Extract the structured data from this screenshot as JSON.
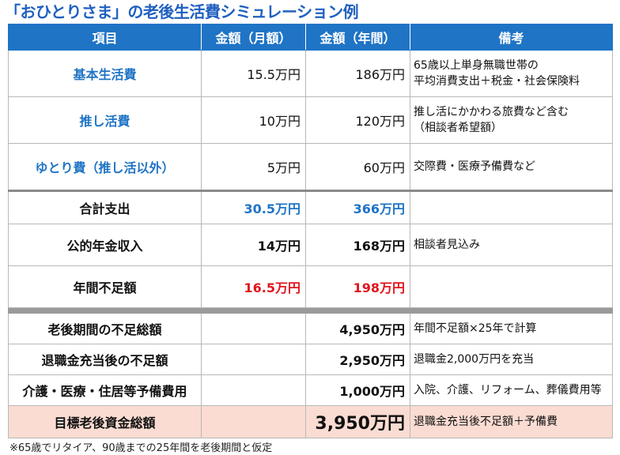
{
  "title": "「おひとりさま」の老後生活費シミュレーション例",
  "headers": [
    "項目",
    "金額（月額）",
    "金額（年間）",
    "備考"
  ],
  "rows": [
    {
      "item": "基本生活費",
      "monthly": "15.5万円",
      "annual": "186万円",
      "note": "65歳以上単身無職世帯の\n平均消費支出＋税金・社会保険料"
    },
    {
      "item": "推し活費",
      "monthly": "10万円",
      "annual": "120万円",
      "note": "推し活にかかわる旅費など含む\n（相談者希望額）"
    },
    {
      "item": "ゆとり費（推し活以外）",
      "monthly": "5万円",
      "annual": "60万円",
      "note": "交際費・医療予備費など"
    }
  ],
  "summary": [
    {
      "item": "合計支出",
      "monthly": "30.5万円",
      "annual": "366万円",
      "note": ""
    },
    {
      "item": "公的年金収入",
      "monthly": "14万円",
      "annual": "168万円",
      "note": "相談者見込み"
    },
    {
      "item": "年間不足額",
      "monthly": "16.5万円",
      "annual": "198万円",
      "note": ""
    }
  ],
  "lower": [
    {
      "item": "老後期間の不足総額",
      "monthly": "",
      "annual": "4,950万円",
      "note": "年間不足額×25年で計算"
    },
    {
      "item": "退職金充当後の不足額",
      "monthly": "",
      "annual": "2,950万円",
      "note": "退職金2,000万円を充当"
    },
    {
      "item": "介護・医療・住居等予備費用",
      "monthly": "",
      "annual": "1,000万円",
      "note": "入院、介護、リフォーム、葬儀費用等"
    }
  ],
  "goal": {
    "item": "目標老後資金総額",
    "monthly": "",
    "annual": "3,950万円",
    "note": "退職金充当後不足額＋予備費"
  },
  "footnote": "※65歳でリタイア、90歳までの25年間を老後期間と仮定",
  "colors": {
    "header": "#1f74c5",
    "accent_blue": "#1f74c5",
    "accent_red": "#e0141e",
    "goal_bg": "#fbdcd2"
  }
}
